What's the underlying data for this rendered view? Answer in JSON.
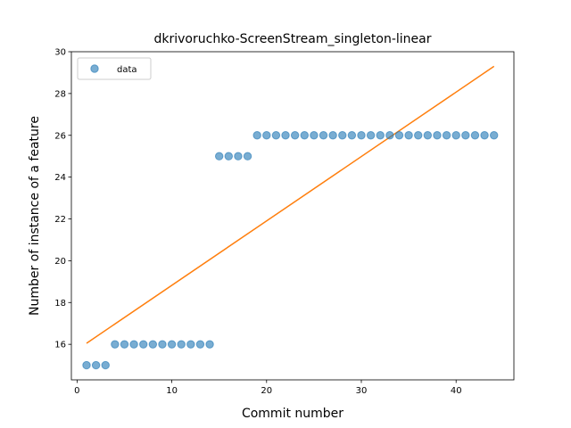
{
  "chart_data": {
    "type": "scatter",
    "title": "dkrivoruchko-ScreenStream_singleton-linear",
    "xlabel": "Commit number",
    "ylabel": "Number of instance of a feature",
    "xlim": [
      -0.6,
      46.1
    ],
    "ylim": [
      14.3,
      30
    ],
    "xticks": [
      0,
      10,
      20,
      30,
      40
    ],
    "yticks": [
      16,
      18,
      20,
      22,
      24,
      26,
      28,
      30
    ],
    "grid": false,
    "legend": {
      "placement": "top-left",
      "entries": [
        "data"
      ]
    },
    "colors": {
      "points": "#1f77b4",
      "fit_line": "#ff7f0e"
    },
    "series": [
      {
        "name": "data",
        "kind": "scatter",
        "x": [
          1,
          2,
          3,
          4,
          5,
          6,
          7,
          8,
          9,
          10,
          11,
          12,
          13,
          14,
          15,
          16,
          17,
          18,
          19,
          20,
          21,
          22,
          23,
          24,
          25,
          26,
          27,
          28,
          29,
          30,
          31,
          32,
          33,
          34,
          35,
          36,
          37,
          38,
          39,
          40,
          41,
          42,
          43,
          44
        ],
        "y": [
          15,
          15,
          15,
          16,
          16,
          16,
          16,
          16,
          16,
          16,
          16,
          16,
          16,
          16,
          25,
          25,
          25,
          25,
          26,
          26,
          26,
          26,
          26,
          26,
          26,
          26,
          26,
          26,
          26,
          26,
          26,
          26,
          26,
          26,
          26,
          26,
          26,
          26,
          26,
          26,
          26,
          26,
          26,
          26
        ]
      },
      {
        "kind": "line",
        "x": [
          1,
          44
        ],
        "y": [
          16.05,
          29.3
        ]
      }
    ]
  }
}
